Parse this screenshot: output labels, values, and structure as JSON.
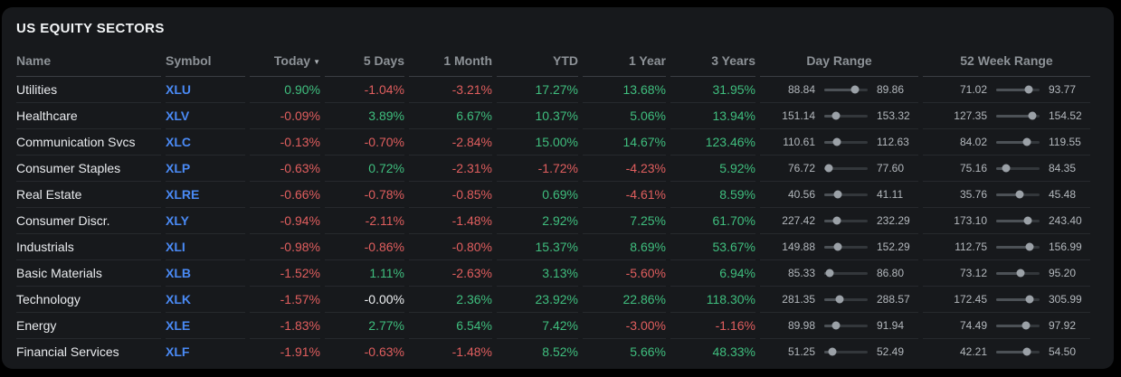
{
  "panel": {
    "title": "US EQUITY SECTORS"
  },
  "colors": {
    "positive": "#3fbe7e",
    "negative": "#e05e5e",
    "neutral": "#edeff1",
    "symbol_link": "#4a8af5",
    "header_text": "#8d9297",
    "panel_bg": "#17191c",
    "page_bg": "#000000"
  },
  "table": {
    "sort_indicator": "▼",
    "sorted_column": "today",
    "columns": [
      {
        "key": "name",
        "label": "Name",
        "align": "left"
      },
      {
        "key": "symbol",
        "label": "Symbol",
        "align": "left"
      },
      {
        "key": "today",
        "label": "Today",
        "align": "right",
        "sorted": "desc"
      },
      {
        "key": "d5",
        "label": "5 Days",
        "align": "right"
      },
      {
        "key": "m1",
        "label": "1 Month",
        "align": "right"
      },
      {
        "key": "ytd",
        "label": "YTD",
        "align": "right"
      },
      {
        "key": "y1",
        "label": "1 Year",
        "align": "right"
      },
      {
        "key": "y3",
        "label": "3 Years",
        "align": "right"
      },
      {
        "key": "day_range",
        "label": "Day Range",
        "align": "center"
      },
      {
        "key": "week52_range",
        "label": "52 Week Range",
        "align": "center"
      }
    ],
    "rows": [
      {
        "name": "Utilities",
        "symbol": "XLU",
        "today": "0.90%",
        "d5": "-1.04%",
        "m1": "-3.21%",
        "ytd": "17.27%",
        "y1": "13.68%",
        "y3": "31.95%",
        "day_range": {
          "low": "88.84",
          "high": "89.86",
          "pos": 70
        },
        "week52_range": {
          "low": "71.02",
          "high": "93.77",
          "pos": 76
        }
      },
      {
        "name": "Healthcare",
        "symbol": "XLV",
        "today": "-0.09%",
        "d5": "3.89%",
        "m1": "6.67%",
        "ytd": "10.37%",
        "y1": "5.06%",
        "y3": "13.94%",
        "day_range": {
          "low": "151.14",
          "high": "153.32",
          "pos": 28
        },
        "week52_range": {
          "low": "127.35",
          "high": "154.52",
          "pos": 84
        }
      },
      {
        "name": "Communication Svcs",
        "symbol": "XLC",
        "today": "-0.13%",
        "d5": "-0.70%",
        "m1": "-2.84%",
        "ytd": "15.00%",
        "y1": "14.67%",
        "y3": "123.46%",
        "day_range": {
          "low": "110.61",
          "high": "112.63",
          "pos": 29
        },
        "week52_range": {
          "low": "84.02",
          "high": "119.55",
          "pos": 70
        }
      },
      {
        "name": "Consumer Staples",
        "symbol": "XLP",
        "today": "-0.63%",
        "d5": "0.72%",
        "m1": "-2.31%",
        "ytd": "-1.72%",
        "y1": "-4.23%",
        "y3": "5.92%",
        "day_range": {
          "low": "76.72",
          "high": "77.60",
          "pos": 10
        },
        "week52_range": {
          "low": "75.16",
          "high": "84.35",
          "pos": 22
        }
      },
      {
        "name": "Real Estate",
        "symbol": "XLRE",
        "today": "-0.66%",
        "d5": "-0.78%",
        "m1": "-0.85%",
        "ytd": "0.69%",
        "y1": "-4.61%",
        "y3": "8.59%",
        "day_range": {
          "low": "40.56",
          "high": "41.11",
          "pos": 32
        },
        "week52_range": {
          "low": "35.76",
          "high": "45.48",
          "pos": 54
        }
      },
      {
        "name": "Consumer Discr.",
        "symbol": "XLY",
        "today": "-0.94%",
        "d5": "-2.11%",
        "m1": "-1.48%",
        "ytd": "2.92%",
        "y1": "7.25%",
        "y3": "61.70%",
        "day_range": {
          "low": "227.42",
          "high": "232.29",
          "pos": 29
        },
        "week52_range": {
          "low": "173.10",
          "high": "243.40",
          "pos": 72
        }
      },
      {
        "name": "Industrials",
        "symbol": "XLI",
        "today": "-0.98%",
        "d5": "-0.86%",
        "m1": "-0.80%",
        "ytd": "15.37%",
        "y1": "8.69%",
        "y3": "53.67%",
        "day_range": {
          "low": "149.88",
          "high": "152.29",
          "pos": 31
        },
        "week52_range": {
          "low": "112.75",
          "high": "156.99",
          "pos": 77
        }
      },
      {
        "name": "Basic Materials",
        "symbol": "XLB",
        "today": "-1.52%",
        "d5": "1.11%",
        "m1": "-2.63%",
        "ytd": "3.13%",
        "y1": "-5.60%",
        "y3": "6.94%",
        "day_range": {
          "low": "85.33",
          "high": "86.80",
          "pos": 13
        },
        "week52_range": {
          "low": "73.12",
          "high": "95.20",
          "pos": 56
        }
      },
      {
        "name": "Technology",
        "symbol": "XLK",
        "today": "-1.57%",
        "d5": "-0.00%",
        "m1": "2.36%",
        "ytd": "23.92%",
        "y1": "22.86%",
        "y3": "118.30%",
        "day_range": {
          "low": "281.35",
          "high": "288.57",
          "pos": 35
        },
        "week52_range": {
          "low": "172.45",
          "high": "305.99",
          "pos": 78
        }
      },
      {
        "name": "Energy",
        "symbol": "XLE",
        "today": "-1.83%",
        "d5": "2.77%",
        "m1": "6.54%",
        "ytd": "7.42%",
        "y1": "-3.00%",
        "y3": "-1.16%",
        "day_range": {
          "low": "89.98",
          "high": "91.94",
          "pos": 27
        },
        "week52_range": {
          "low": "74.49",
          "high": "97.92",
          "pos": 68
        }
      },
      {
        "name": "Financial Services",
        "symbol": "XLF",
        "today": "-1.91%",
        "d5": "-0.63%",
        "m1": "-1.48%",
        "ytd": "8.52%",
        "y1": "5.66%",
        "y3": "48.33%",
        "day_range": {
          "low": "51.25",
          "high": "52.49",
          "pos": 19
        },
        "week52_range": {
          "low": "42.21",
          "high": "54.50",
          "pos": 70
        }
      }
    ]
  }
}
